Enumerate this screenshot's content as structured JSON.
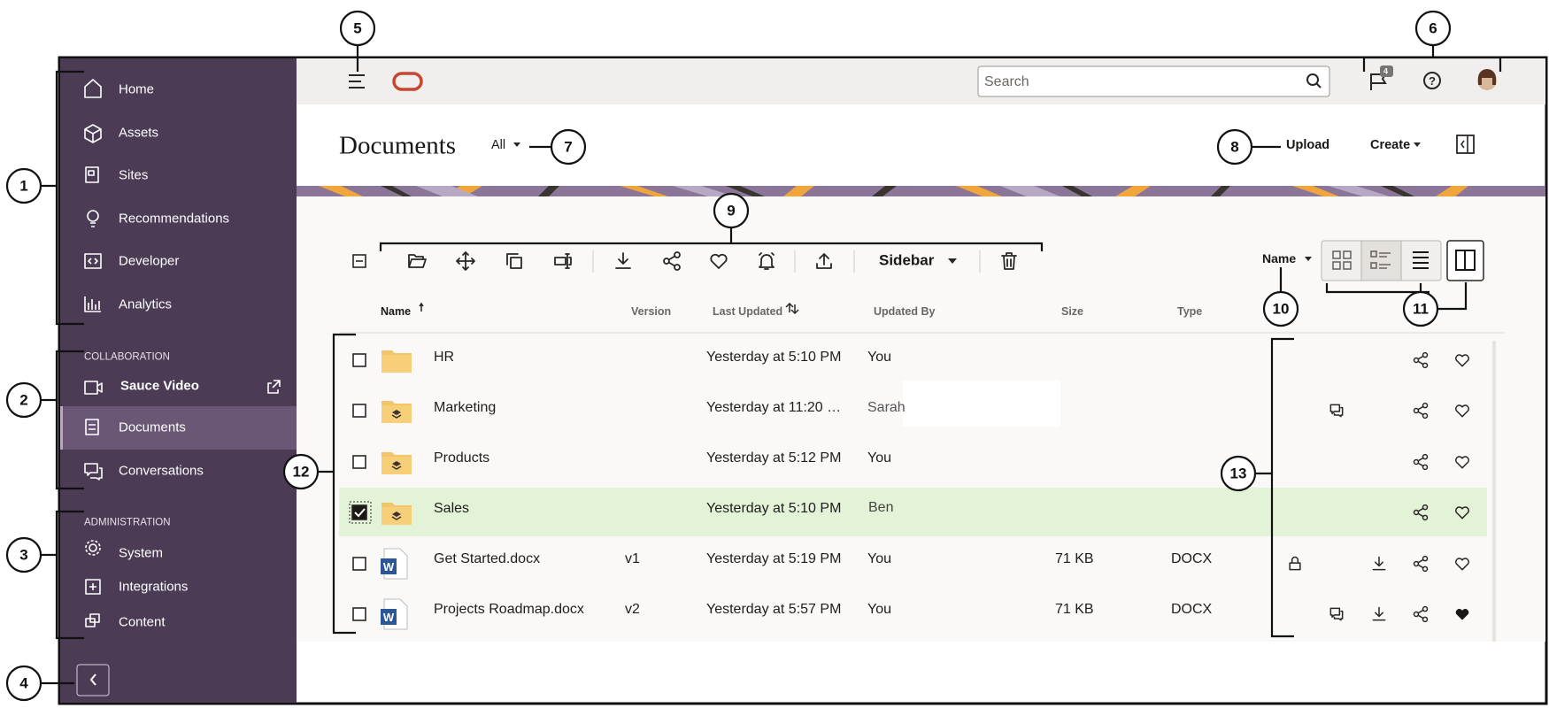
{
  "callouts": [
    1,
    2,
    3,
    4,
    5,
    6,
    7,
    8,
    9,
    10,
    11,
    12,
    13
  ],
  "nav": {
    "items": [
      "Home",
      "Assets",
      "Sites",
      "Recommendations",
      "Developer",
      "Analytics"
    ],
    "collaboration": {
      "heading": "COLLABORATION",
      "items": [
        "Sauce Video",
        "Documents",
        "Conversations"
      ]
    },
    "administration": {
      "heading": "ADMINISTRATION",
      "items": [
        "System",
        "Integrations",
        "Content"
      ]
    }
  },
  "topbar": {
    "search_placeholder": "Search",
    "notification_count": 4
  },
  "header": {
    "title": "Documents",
    "filter": "All",
    "upload": "Upload",
    "create": "Create"
  },
  "toolbar": {
    "sidebar": "Sidebar",
    "sort": "Name"
  },
  "table": {
    "columns": [
      "Name",
      "Version",
      "Last Updated",
      "Updated By",
      "Size",
      "Type"
    ],
    "rows": [
      {
        "name": "HR",
        "last_updated": "Yesterday at 5:10 PM",
        "updated_by": "You"
      },
      {
        "name": "Marketing",
        "last_updated": "Yesterday at 11:20 …",
        "updated_by": "Sarah"
      },
      {
        "name": "Products",
        "last_updated": "Yesterday at 5:12 PM",
        "updated_by": "You"
      },
      {
        "name": "Sales",
        "last_updated": "Yesterday at 5:10 PM",
        "updated_by": "Ben"
      },
      {
        "name": "Get Started.docx",
        "version": "v1",
        "last_updated": "Yesterday at 5:19 PM",
        "updated_by": "You",
        "size": "71 KB",
        "type": "DOCX"
      },
      {
        "name": "Projects Roadmap.docx",
        "version": "v2",
        "last_updated": "Yesterday at 5:57 PM",
        "updated_by": "You",
        "size": "71 KB",
        "type": "DOCX"
      }
    ]
  }
}
